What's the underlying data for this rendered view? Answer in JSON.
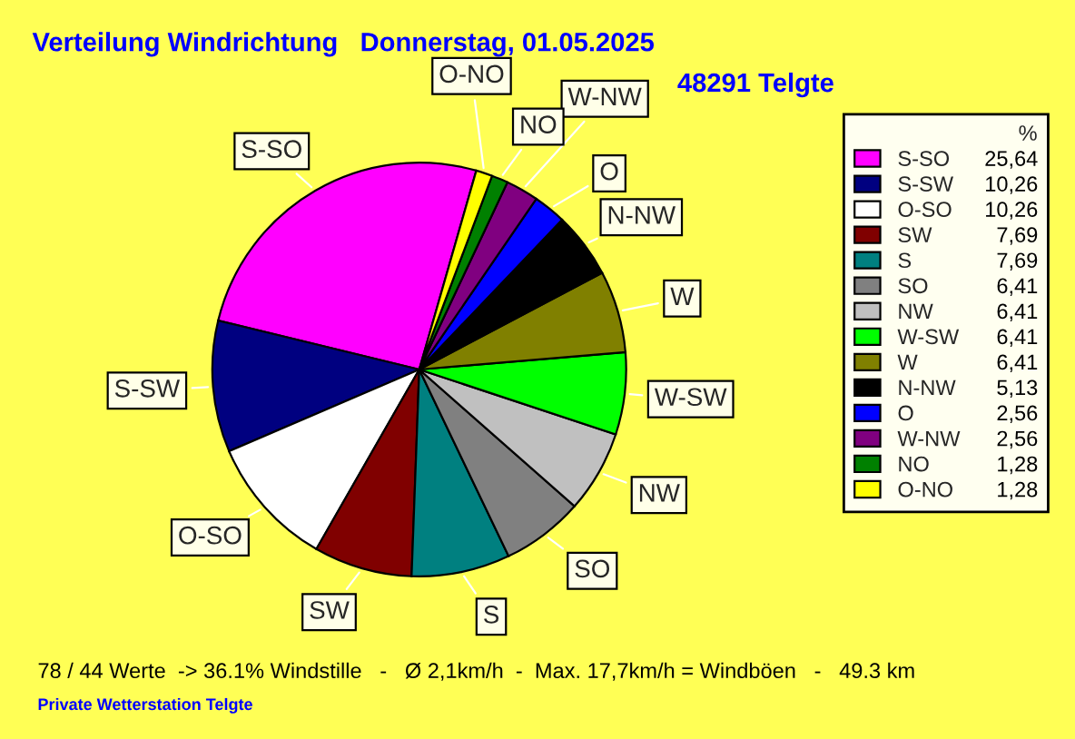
{
  "chart_data": {
    "type": "pie",
    "title": "Verteilung Windrichtung   Donnerstag, 01.05.2025",
    "subtitle": "48291 Telgte",
    "legend_title": "%",
    "categories": [
      "S-SO",
      "S-SW",
      "O-SO",
      "SW",
      "S",
      "SO",
      "NW",
      "W-SW",
      "W",
      "N-NW",
      "O",
      "W-NW",
      "NO",
      "O-NO"
    ],
    "values": [
      25.64,
      10.26,
      10.26,
      7.69,
      7.69,
      6.41,
      6.41,
      6.41,
      6.41,
      5.13,
      2.56,
      2.56,
      1.28,
      1.28
    ],
    "value_labels": [
      "25,64",
      "10,26",
      "10,26",
      "7,69",
      "7,69",
      "6,41",
      "6,41",
      "6,41",
      "6,41",
      "5,13",
      "2,56",
      "2,56",
      "1,28",
      "1,28"
    ],
    "colors": [
      "#ff00ff",
      "#000080",
      "#ffffff",
      "#800000",
      "#008080",
      "#808080",
      "#c0c0c0",
      "#00ff00",
      "#808000",
      "#000000",
      "#0000ff",
      "#800080",
      "#008000",
      "#ffff00"
    ],
    "legend": "right",
    "annotations": [
      "78 / 44 Werte  -> 36.1% Windstille   -   Ø 2,1km/h  -  Max. 17,7km/h = Windböen   -   49.3 km",
      "Private Wetterstation Telgte"
    ]
  }
}
